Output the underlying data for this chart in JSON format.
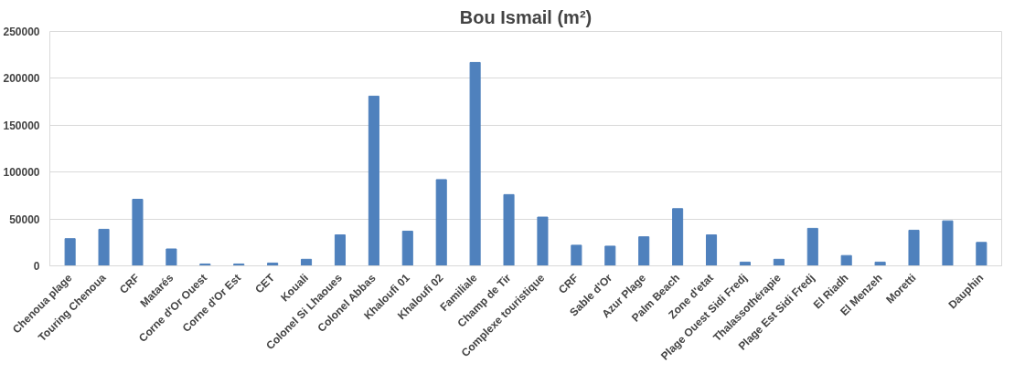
{
  "chart_data": {
    "type": "bar",
    "title": "Bou Ismail (m²)",
    "categories": [
      "Chenoua plage",
      "Touring Chenoua",
      "CRF",
      "Matarés",
      "Corne d'Or Ouest",
      "Corne d'Or Est",
      "CET",
      "Kouali",
      "Colonel Si Lhaoues",
      "Colonel Abbas",
      "Khaloufi 01",
      "Khaloufi 02",
      "Familiale",
      "Champ de Tir",
      "Complexe touristique",
      "CRF",
      "Sable d'Or",
      "Azur Plage",
      "Palm Beach",
      "Zone d'etat",
      "Plage Ouest Sidi Fredj",
      "Thalassothérapie",
      "Plage Est Sidi Fredj",
      "El Riadh",
      "El Menzeh",
      "Moretti",
      null,
      "Dauphin"
    ],
    "values": [
      29000,
      39000,
      71000,
      18000,
      2000,
      2000,
      3000,
      7000,
      33000,
      181000,
      37000,
      92000,
      217000,
      76000,
      52000,
      22000,
      21000,
      31000,
      61000,
      33000,
      4000,
      7000,
      40000,
      11000,
      4000,
      38000,
      48000,
      25000
    ],
    "color": "#4f81bd",
    "ylim": [
      0,
      250000
    ],
    "yticks": [
      0,
      50000,
      100000,
      150000,
      200000,
      250000
    ],
    "grid": "y"
  }
}
